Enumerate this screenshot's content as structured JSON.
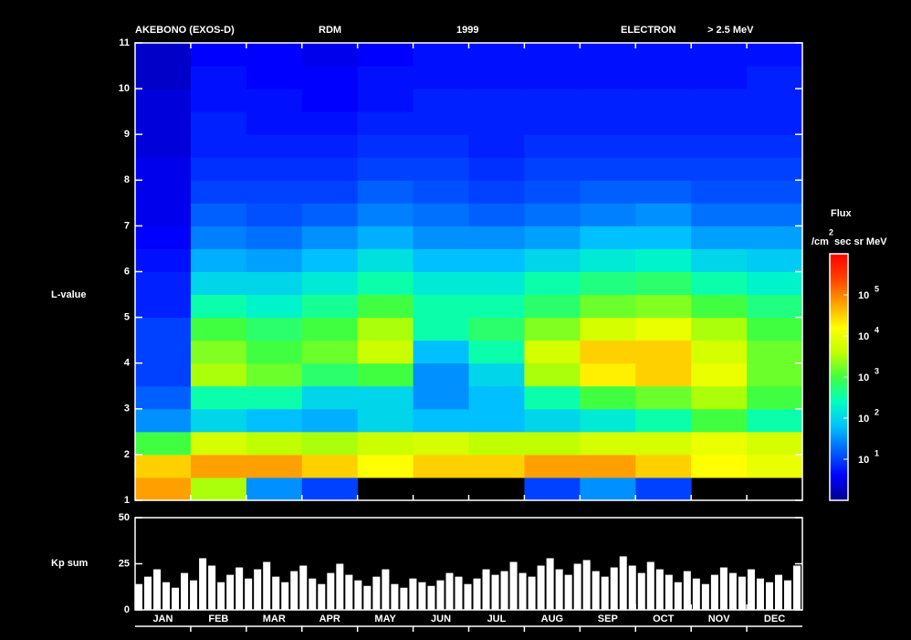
{
  "chart_data": [
    {
      "type": "heatmap",
      "title_parts": [
        "AKEBONO (EXOS-D)",
        "RDM",
        "1999",
        "ELECTRON",
        "> 2.5 MeV"
      ],
      "ylabel": "L-value",
      "categories": [
        "JAN",
        "FEB",
        "MAR",
        "APR",
        "MAY",
        "JUN",
        "JUL",
        "AUG",
        "SEP",
        "OCT",
        "NOV",
        "DEC"
      ],
      "ylim": [
        1,
        11
      ],
      "yticks": [
        1,
        2,
        3,
        4,
        5,
        6,
        7,
        8,
        9,
        10,
        11
      ],
      "ybins": [
        1,
        1.5,
        2,
        2.5,
        3,
        3.5,
        4,
        4.5,
        5,
        5.5,
        6,
        6.5,
        7,
        7.5,
        8,
        8.5,
        9,
        9.5,
        10,
        10.5,
        11
      ],
      "z": [
        [
          4.8,
          3.5,
          1.5,
          1,
          null,
          null,
          null,
          1,
          1.5,
          1,
          null,
          null
        ],
        [
          4.5,
          4.8,
          4.8,
          4.5,
          4.2,
          4.5,
          4.5,
          4.8,
          4.8,
          4.5,
          4.2,
          4
        ],
        [
          3,
          3.8,
          3.6,
          3.5,
          3.7,
          3.8,
          3.6,
          3.6,
          3.8,
          3.8,
          4,
          3.8
        ],
        [
          1.5,
          2,
          1.8,
          1.7,
          2,
          1.8,
          1.8,
          2,
          2.2,
          2.5,
          3,
          2.5
        ],
        [
          1.2,
          2.5,
          2.5,
          2,
          2,
          1.5,
          1.8,
          2.5,
          3,
          3.2,
          3.5,
          3
        ],
        [
          1,
          3.5,
          3.2,
          2.8,
          3,
          1.5,
          2,
          3.5,
          4.3,
          4.5,
          4,
          3.2
        ],
        [
          1,
          3.3,
          3,
          3.2,
          3.7,
          1.8,
          2.5,
          3.8,
          4.5,
          4.5,
          3.8,
          3.2
        ],
        [
          1,
          3,
          2.8,
          3,
          3.5,
          2.5,
          2.8,
          3.3,
          3.8,
          4,
          3.5,
          3
        ],
        [
          0.8,
          2.5,
          2.3,
          2.6,
          3,
          2.5,
          2.5,
          2.8,
          3.2,
          3.3,
          3,
          2.7
        ],
        [
          0.8,
          2,
          2,
          2.2,
          2.5,
          2.2,
          2.2,
          2.5,
          2.7,
          2.8,
          2.5,
          2.3
        ],
        [
          0.7,
          1.7,
          1.6,
          1.8,
          2.1,
          1.8,
          1.8,
          2,
          2.2,
          2.3,
          2,
          1.9
        ],
        [
          0.6,
          1.4,
          1.3,
          1.5,
          1.7,
          1.5,
          1.5,
          1.6,
          1.8,
          1.8,
          1.6,
          1.6
        ],
        [
          0.5,
          1.2,
          1.1,
          1.2,
          1.4,
          1.3,
          1.2,
          1.3,
          1.4,
          1.5,
          1.3,
          1.3
        ],
        [
          0.5,
          1,
          1,
          1,
          1.2,
          1.1,
          1,
          1.1,
          1.2,
          1.2,
          1.1,
          1.1
        ],
        [
          0.5,
          0.9,
          0.9,
          0.9,
          1,
          1,
          0.9,
          1,
          1,
          1,
          1,
          1
        ],
        [
          0.4,
          0.8,
          0.8,
          0.8,
          0.9,
          0.9,
          0.8,
          0.9,
          0.9,
          0.9,
          0.9,
          0.9
        ],
        [
          0.4,
          0.8,
          0.7,
          0.7,
          0.8,
          0.8,
          0.8,
          0.8,
          0.8,
          0.8,
          0.8,
          0.8
        ],
        [
          0.4,
          0.7,
          0.7,
          0.6,
          0.7,
          0.8,
          0.8,
          0.8,
          0.8,
          0.8,
          0.8,
          0.8
        ],
        [
          0.3,
          0.7,
          0.6,
          0.6,
          0.7,
          0.7,
          0.7,
          0.7,
          0.7,
          0.7,
          0.7,
          0.8
        ],
        [
          0.3,
          0.6,
          0.6,
          0.5,
          0.6,
          0.7,
          0.7,
          0.7,
          0.7,
          0.7,
          0.7,
          0.7
        ]
      ],
      "colormap": [
        "#000090",
        "#0000ff",
        "#0060ff",
        "#00c0ff",
        "#00ffc0",
        "#40ff40",
        "#c0ff00",
        "#ffff00",
        "#ffa000",
        "#ff4000",
        "#ff0000"
      ],
      "colorbar_label": "Flux",
      "colorbar_unit": [
        "/cm",
        "2",
        " sec sr MeV"
      ],
      "clim": [
        0,
        6
      ],
      "cticks": [
        {
          "value": 1,
          "label": "10"
        },
        {
          "value": 2,
          "label": "10"
        },
        {
          "value": 3,
          "label": "10"
        },
        {
          "value": 4,
          "label": "10"
        },
        {
          "value": 5,
          "label": "10"
        }
      ]
    },
    {
      "type": "bar",
      "ylabel": "Kp sum",
      "ylim": [
        0,
        50
      ],
      "yticks": [
        0,
        25,
        50
      ],
      "color": "#ffffff",
      "values": [
        14,
        18,
        22,
        15,
        12,
        20,
        16,
        28,
        24,
        15,
        19,
        23,
        17,
        22,
        26,
        18,
        15,
        21,
        24,
        17,
        14,
        20,
        25,
        19,
        16,
        13,
        18,
        22,
        14,
        12,
        17,
        15,
        13,
        16,
        20,
        18,
        14,
        17,
        22,
        19,
        21,
        26,
        20,
        18,
        24,
        28,
        22,
        19,
        25,
        27,
        21,
        18,
        23,
        29,
        24,
        20,
        26,
        22,
        19,
        15,
        21,
        17,
        14,
        19,
        23,
        20,
        18,
        22,
        17,
        15,
        19,
        16,
        24
      ]
    }
  ]
}
